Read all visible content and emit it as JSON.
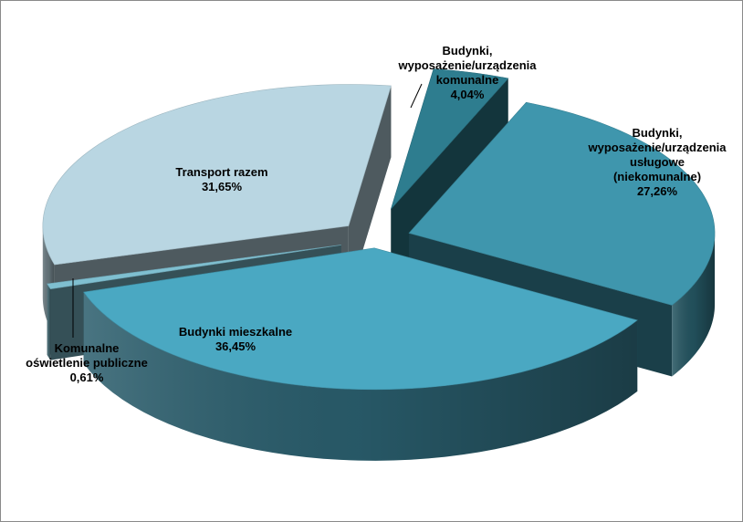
{
  "chart_data": {
    "type": "pie",
    "title": "",
    "style": "3d-exploded",
    "unit": "%",
    "legend": "none",
    "slices": [
      {
        "name": [
          "Budynki,",
          "wyposażenie/urządzenia",
          "komunalne"
        ],
        "value": 4.04,
        "value_label": "4,04%",
        "color": "#2e7d8f"
      },
      {
        "name": [
          "Budynki,",
          "wyposażenie/urządzenia",
          "usługowe",
          "(niekomunalne)"
        ],
        "value": 27.26,
        "value_label": "27,26%",
        "color": "#3f96ad"
      },
      {
        "name": [
          "Budynki mieszkalne"
        ],
        "value": 36.45,
        "value_label": "36,45%",
        "color": "#4aa8c2"
      },
      {
        "name": [
          "Komunalne",
          "oświetlenie publiczne"
        ],
        "value": 0.61,
        "value_label": "0,61%",
        "color": "#7fbfd0"
      },
      {
        "name": [
          "Transport razem"
        ],
        "value": 31.65,
        "value_label": "31,65%",
        "color": "#b9d6e2"
      }
    ]
  }
}
